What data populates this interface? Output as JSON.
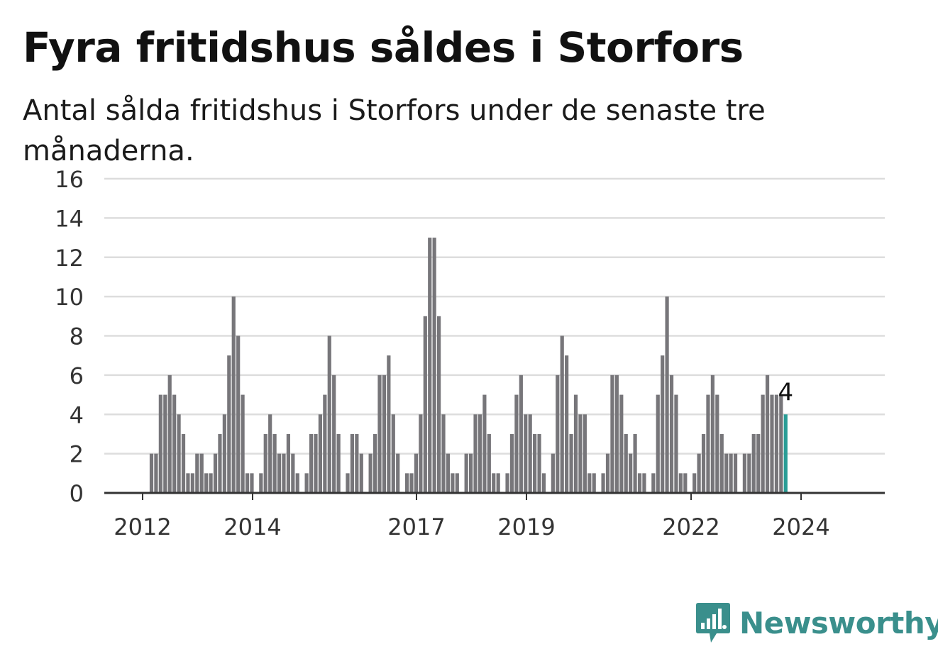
{
  "title": "Fyra fritidshus såldes i Storfors",
  "subtitle": "Antal sålda fritidshus i Storfors under de senaste tre månaderna.",
  "brand": {
    "name": "Newsworthy",
    "icon": "newsworthy-logo-icon",
    "color": "#3a8f8c"
  },
  "colors": {
    "bar": "#77767a",
    "highlight": "#2a9d96",
    "grid": "#dddddd",
    "axis": "#333333"
  },
  "chart_data": {
    "type": "bar",
    "title": "Fyra fritidshus såldes i Storfors",
    "ylim": [
      0,
      16
    ],
    "yticks": [
      "0",
      "2",
      "4",
      "6",
      "8",
      "10",
      "12",
      "14",
      "16"
    ],
    "xticks": [
      "2012",
      "2014",
      "2017",
      "2019",
      "2022",
      "2024"
    ],
    "grid": true,
    "highlight_label": "4",
    "series": [
      {
        "values": [
          2,
          2,
          5,
          5,
          6,
          5,
          4,
          3,
          1,
          1,
          2,
          2,
          1,
          1,
          2,
          3,
          4,
          7,
          10,
          8,
          5,
          1,
          1,
          0,
          1,
          3,
          4,
          3,
          2,
          2,
          3,
          2,
          1,
          0,
          1,
          3,
          3,
          4,
          5,
          8,
          6,
          3,
          0,
          1,
          3,
          3,
          2,
          0,
          2,
          3,
          6,
          6,
          7,
          4,
          2,
          0,
          1,
          1,
          2,
          4,
          9,
          13,
          13,
          9,
          4,
          2,
          1,
          1,
          0,
          2,
          2,
          4,
          4,
          5,
          3,
          1,
          1,
          0,
          1,
          3,
          5,
          6,
          4,
          4,
          3,
          3,
          1,
          0,
          2,
          6,
          8,
          7,
          3,
          5,
          4,
          4,
          1,
          1,
          0,
          1,
          2,
          6,
          6,
          5,
          3,
          2,
          3,
          1,
          1,
          0,
          1,
          5,
          7,
          10,
          6,
          5,
          1,
          1,
          0,
          1,
          2,
          3,
          5,
          6,
          5,
          3,
          2,
          2,
          2,
          0,
          2,
          2,
          3,
          3,
          5,
          6,
          5,
          5,
          5,
          4
        ]
      }
    ]
  }
}
